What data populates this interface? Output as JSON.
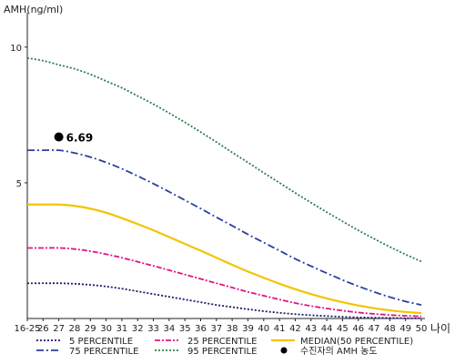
{
  "chart_data": {
    "type": "line",
    "ylabel": "AMH(ng/ml)",
    "xlabel": "나이",
    "ylim": [
      0,
      11
    ],
    "yticks": [
      5,
      10
    ],
    "categories": [
      "16-25",
      "26",
      "27",
      "28",
      "29",
      "30",
      "31",
      "32",
      "33",
      "34",
      "35",
      "36",
      "37",
      "38",
      "39",
      "40",
      "41",
      "42",
      "43",
      "44",
      "45",
      "46",
      "47",
      "48",
      "49",
      "50"
    ],
    "series": [
      {
        "name": "5 PERCENTILE",
        "color": "#1a1a6e",
        "dash": "2,2",
        "values": [
          1.3,
          1.3,
          1.3,
          1.28,
          1.24,
          1.18,
          1.1,
          1.0,
          0.9,
          0.8,
          0.7,
          0.6,
          0.5,
          0.42,
          0.34,
          0.27,
          0.21,
          0.16,
          0.12,
          0.09,
          0.06,
          0.04,
          0.03,
          0.02,
          0.01,
          0.01
        ]
      },
      {
        "name": "25 PERCENTILE",
        "color": "#e0158a",
        "dash": "6,2,2,2",
        "values": [
          2.6,
          2.6,
          2.6,
          2.56,
          2.48,
          2.37,
          2.24,
          2.09,
          1.94,
          1.78,
          1.62,
          1.46,
          1.3,
          1.14,
          0.98,
          0.84,
          0.7,
          0.57,
          0.46,
          0.37,
          0.29,
          0.22,
          0.17,
          0.13,
          0.1,
          0.08
        ]
      },
      {
        "name": "MEDIAN(50 PERCENTILE)",
        "color": "#f2c400",
        "dash": "",
        "values": [
          4.2,
          4.2,
          4.2,
          4.15,
          4.05,
          3.9,
          3.7,
          3.48,
          3.25,
          3.0,
          2.75,
          2.5,
          2.24,
          1.98,
          1.73,
          1.5,
          1.28,
          1.08,
          0.9,
          0.74,
          0.6,
          0.48,
          0.38,
          0.3,
          0.24,
          0.2
        ]
      },
      {
        "name": "75 PERCENTILE",
        "color": "#2a3f9e",
        "dash": "8,3,2,3",
        "values": [
          6.2,
          6.2,
          6.2,
          6.1,
          5.95,
          5.75,
          5.52,
          5.25,
          4.97,
          4.67,
          4.36,
          4.05,
          3.73,
          3.42,
          3.1,
          2.8,
          2.5,
          2.2,
          1.93,
          1.67,
          1.42,
          1.19,
          0.98,
          0.79,
          0.63,
          0.5
        ]
      },
      {
        "name": "95 PERCENTILE",
        "color": "#2e7d4f",
        "dash": "2,2",
        "values": [
          9.6,
          9.5,
          9.35,
          9.2,
          9.0,
          8.75,
          8.5,
          8.2,
          7.9,
          7.57,
          7.23,
          6.87,
          6.5,
          6.12,
          5.75,
          5.37,
          5.0,
          4.63,
          4.27,
          3.92,
          3.58,
          3.25,
          2.94,
          2.64,
          2.36,
          2.1
        ]
      }
    ],
    "patient": {
      "name": "수진자의 AMH 농도",
      "x": "27",
      "y": 6.69,
      "label": "6.69"
    },
    "grid": false,
    "legend": "bottom"
  }
}
